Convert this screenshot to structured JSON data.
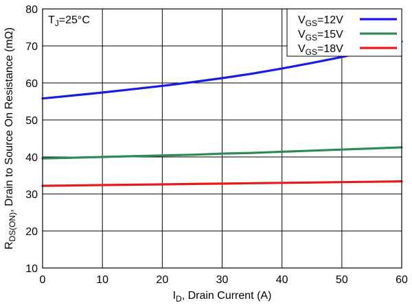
{
  "chart_data": {
    "type": "line",
    "title": "",
    "xlabel": {
      "main": "I",
      "sub": "D",
      "rest": ", Drain Current (A)"
    },
    "ylabel": {
      "main": "R",
      "sub": "DS(ON)",
      "rest": ", Drain to Source On Resistance (mΩ)"
    },
    "xlim": [
      0,
      60
    ],
    "ylim": [
      10,
      80
    ],
    "xticks": [
      "0",
      "10",
      "20",
      "30",
      "40",
      "50",
      "60"
    ],
    "yticks": [
      "10",
      "20",
      "30",
      "40",
      "50",
      "60",
      "70",
      "80"
    ],
    "grid": true,
    "legend_position": "top-right",
    "annotation": {
      "main": "T",
      "sub": "J",
      "rest": "=25°C"
    },
    "x": [
      0,
      5,
      10,
      15,
      20,
      25,
      30,
      35,
      40,
      45,
      50,
      55,
      60
    ],
    "series": [
      {
        "name": {
          "main": "V",
          "sub": "GS",
          "rest": "=12V"
        },
        "color": "#1a1ae6",
        "values": [
          55.8,
          56.6,
          57.4,
          58.3,
          59.2,
          60.2,
          61.3,
          62.5,
          63.9,
          65.4,
          67.0,
          68.9,
          71.2
        ]
      },
      {
        "name": {
          "main": "V",
          "sub": "GS",
          "rest": "=15V"
        },
        "color": "#2e8b57",
        "values": [
          39.6,
          39.8,
          40.0,
          40.2,
          40.4,
          40.6,
          40.9,
          41.1,
          41.4,
          41.7,
          42.0,
          42.3,
          42.6
        ]
      },
      {
        "name": {
          "main": "V",
          "sub": "GS",
          "rest": "=18V"
        },
        "color": "#e61a1a",
        "values": [
          32.2,
          32.3,
          32.4,
          32.5,
          32.6,
          32.7,
          32.8,
          32.9,
          33.0,
          33.1,
          33.2,
          33.3,
          33.4
        ]
      }
    ]
  }
}
